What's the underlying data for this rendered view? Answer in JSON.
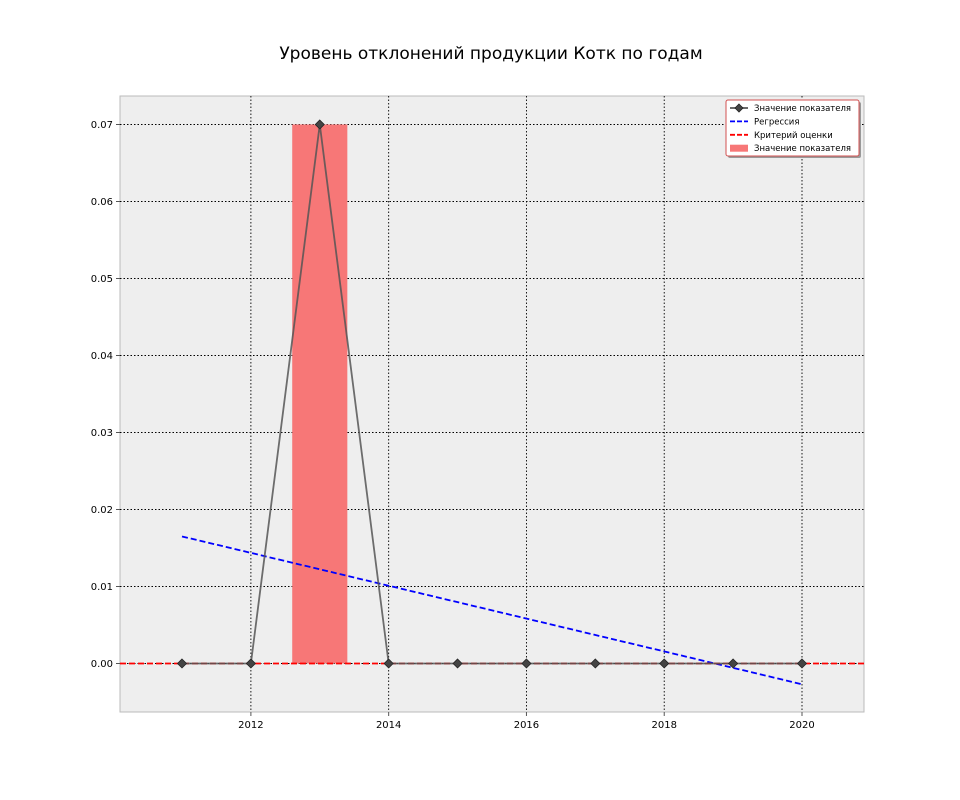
{
  "chart_data": {
    "type": "line",
    "title": "Уровень отклонений продукции Котк по годам",
    "xlabel": "",
    "ylabel": "",
    "xlim": [
      2010.1,
      2020.9
    ],
    "ylim": [
      -0.0063,
      0.0737
    ],
    "x_ticks": [
      2012,
      2014,
      2016,
      2018,
      2020
    ],
    "y_ticks": [
      0.0,
      0.01,
      0.02,
      0.03,
      0.04,
      0.05,
      0.06,
      0.07
    ],
    "x_tick_labels": [
      "2012",
      "2014",
      "2016",
      "2018",
      "2020"
    ],
    "y_tick_labels": [
      "0.00",
      "0.01",
      "0.02",
      "0.03",
      "0.04",
      "0.05",
      "0.06",
      "0.07"
    ],
    "grid": true,
    "legend_position": "top-right",
    "series": [
      {
        "name": "Значение показателя",
        "kind": "line-marker",
        "color": "#555555",
        "marker_color": "#444444",
        "x": [
          2011,
          2012,
          2013,
          2014,
          2015,
          2016,
          2017,
          2018,
          2019,
          2020
        ],
        "y": [
          0.0,
          0.0,
          0.07,
          0.0,
          0.0,
          0.0,
          0.0,
          0.0,
          0.0,
          0.0
        ]
      },
      {
        "name": "Регрессия",
        "kind": "dashed-line",
        "color": "#0000ff",
        "x": [
          2011,
          2020
        ],
        "y": [
          0.0165,
          -0.0027
        ]
      },
      {
        "name": "Критерий оценки",
        "kind": "dashed-hline",
        "color": "#ff0000",
        "y": 0.0
      },
      {
        "name": "Значение показателя",
        "kind": "bar",
        "color": "#f77777",
        "x": [
          2013
        ],
        "y": [
          0.07
        ],
        "width": 0.8
      }
    ]
  }
}
